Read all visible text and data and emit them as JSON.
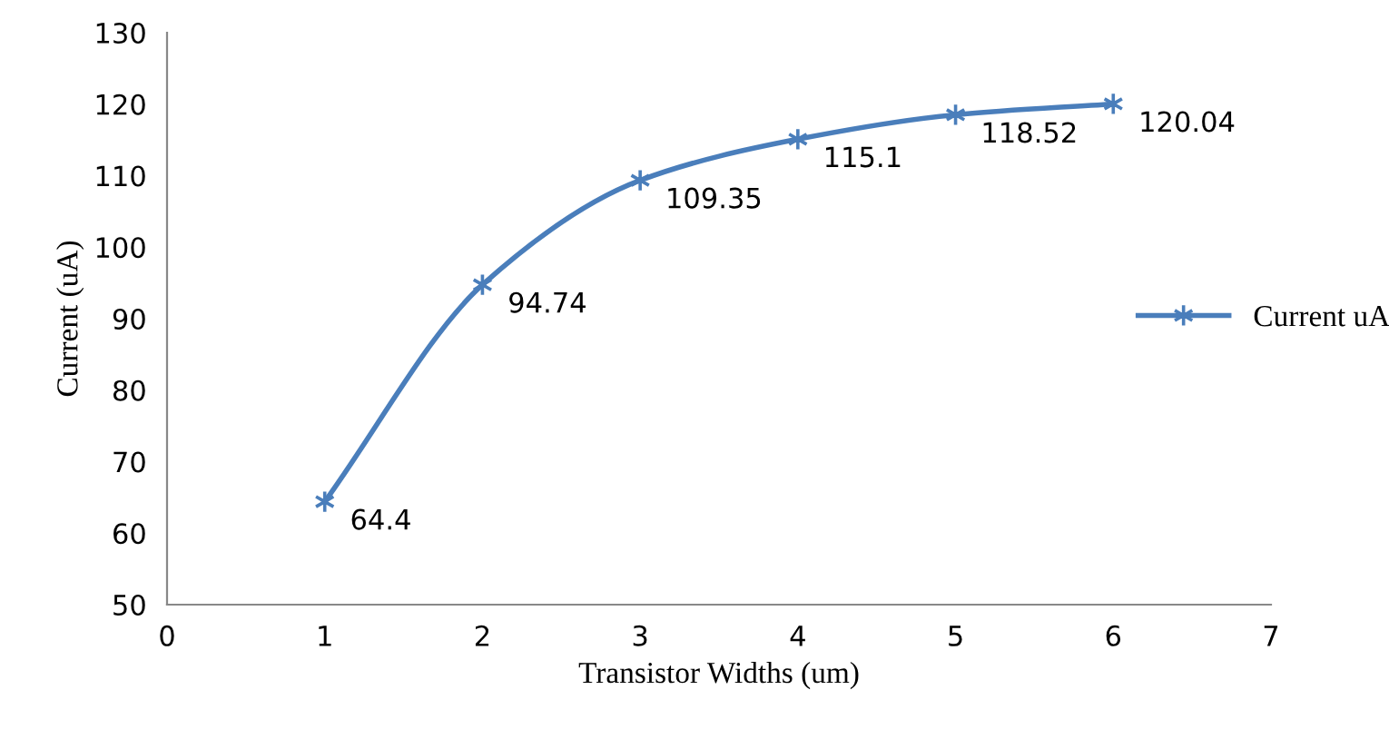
{
  "chart_data": {
    "type": "line",
    "xlabel": "Transistor Widths (um)",
    "ylabel": "Current (uA)",
    "x": [
      1,
      2,
      3,
      4,
      5,
      6
    ],
    "series": [
      {
        "name": "Current uA",
        "color": "#4a7ebb",
        "values": [
          64.4,
          94.74,
          109.35,
          115.1,
          118.52,
          120.04
        ]
      }
    ],
    "xlim": [
      0,
      7
    ],
    "xticks": [
      0,
      1,
      2,
      3,
      4,
      5,
      6,
      7
    ],
    "ylim": [
      50,
      130
    ],
    "yticks": [
      50,
      60,
      70,
      80,
      90,
      100,
      110,
      120,
      130
    ],
    "grid": false,
    "legend": "right",
    "marker": "cross",
    "line_style": "solid",
    "data_labels": true
  }
}
